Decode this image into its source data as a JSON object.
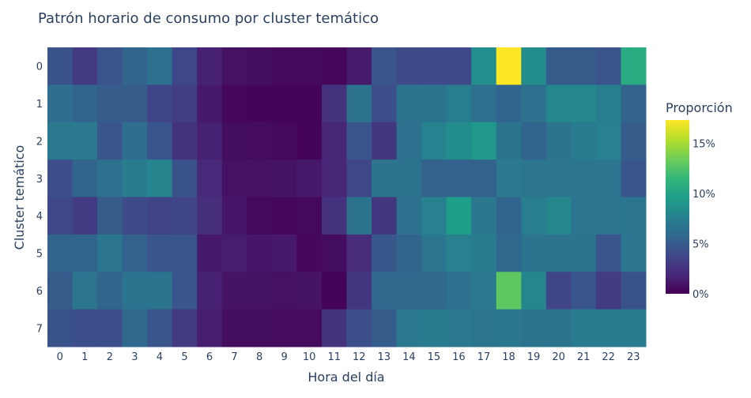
{
  "chart_data": {
    "type": "heatmap",
    "title": "Patrón horario de consumo por cluster temático",
    "xlabel": "Hora del día",
    "ylabel": "Cluster temático",
    "x_categories": [
      "0",
      "1",
      "2",
      "3",
      "4",
      "5",
      "6",
      "7",
      "8",
      "9",
      "10",
      "11",
      "12",
      "13",
      "14",
      "15",
      "16",
      "17",
      "18",
      "19",
      "20",
      "21",
      "22",
      "23"
    ],
    "y_categories": [
      "0",
      "1",
      "2",
      "3",
      "4",
      "5",
      "6",
      "7"
    ],
    "colorscale": "Viridis",
    "zmin": 0,
    "zmax": 17.3,
    "colorbar": {
      "title": "Proporción",
      "ticks": [
        0,
        5,
        10,
        15
      ],
      "tick_labels": [
        "0%",
        "5%",
        "10%",
        "15%"
      ]
    },
    "z": [
      [
        4.5,
        3.0,
        4.6,
        5.6,
        6.4,
        3.8,
        1.6,
        0.8,
        0.6,
        0.4,
        0.4,
        0.3,
        1.3,
        4.6,
        4.0,
        3.9,
        3.9,
        8.6,
        17.3,
        8.4,
        5.0,
        5.0,
        4.6,
        10.6
      ],
      [
        6.2,
        5.6,
        5.0,
        5.0,
        3.6,
        3.2,
        1.2,
        0.3,
        0.2,
        0.2,
        0.2,
        2.5,
        6.6,
        4.2,
        6.6,
        6.6,
        7.4,
        6.4,
        5.6,
        6.4,
        8.0,
        8.0,
        7.4,
        5.4
      ],
      [
        7.0,
        7.0,
        4.6,
        6.2,
        4.6,
        2.6,
        1.6,
        0.6,
        0.5,
        0.4,
        0.2,
        1.8,
        4.6,
        2.8,
        6.4,
        7.7,
        8.4,
        9.2,
        6.6,
        5.6,
        6.6,
        7.2,
        7.6,
        5.0
      ],
      [
        4.2,
        5.6,
        6.4,
        7.2,
        7.8,
        4.4,
        2.0,
        0.8,
        0.8,
        0.9,
        1.2,
        1.8,
        3.8,
        6.6,
        6.6,
        5.4,
        5.4,
        5.4,
        7.0,
        6.8,
        6.7,
        6.7,
        6.7,
        4.6
      ],
      [
        3.8,
        3.0,
        5.0,
        4.0,
        3.5,
        3.6,
        2.4,
        1.0,
        0.4,
        0.3,
        0.4,
        2.5,
        6.6,
        2.8,
        6.4,
        7.6,
        9.6,
        6.9,
        5.6,
        7.4,
        8.0,
        6.8,
        6.8,
        6.8
      ],
      [
        5.6,
        5.6,
        6.8,
        5.4,
        4.6,
        4.6,
        1.2,
        1.4,
        1.1,
        1.2,
        0.3,
        0.6,
        2.2,
        4.8,
        5.6,
        6.8,
        7.6,
        7.2,
        5.8,
        6.6,
        6.6,
        6.6,
        4.6,
        6.8
      ],
      [
        5.0,
        6.8,
        5.6,
        6.6,
        6.6,
        4.6,
        1.6,
        0.9,
        0.9,
        0.8,
        0.9,
        0.2,
        2.8,
        5.8,
        5.8,
        5.8,
        6.4,
        7.0,
        12.9,
        8.0,
        3.6,
        4.6,
        3.0,
        4.4
      ],
      [
        4.4,
        4.2,
        4.2,
        5.8,
        4.6,
        3.0,
        1.4,
        0.6,
        0.6,
        0.5,
        0.5,
        2.6,
        4.2,
        5.0,
        7.0,
        7.2,
        7.0,
        6.7,
        6.9,
        6.6,
        6.6,
        7.2,
        7.2,
        7.2
      ]
    ]
  }
}
